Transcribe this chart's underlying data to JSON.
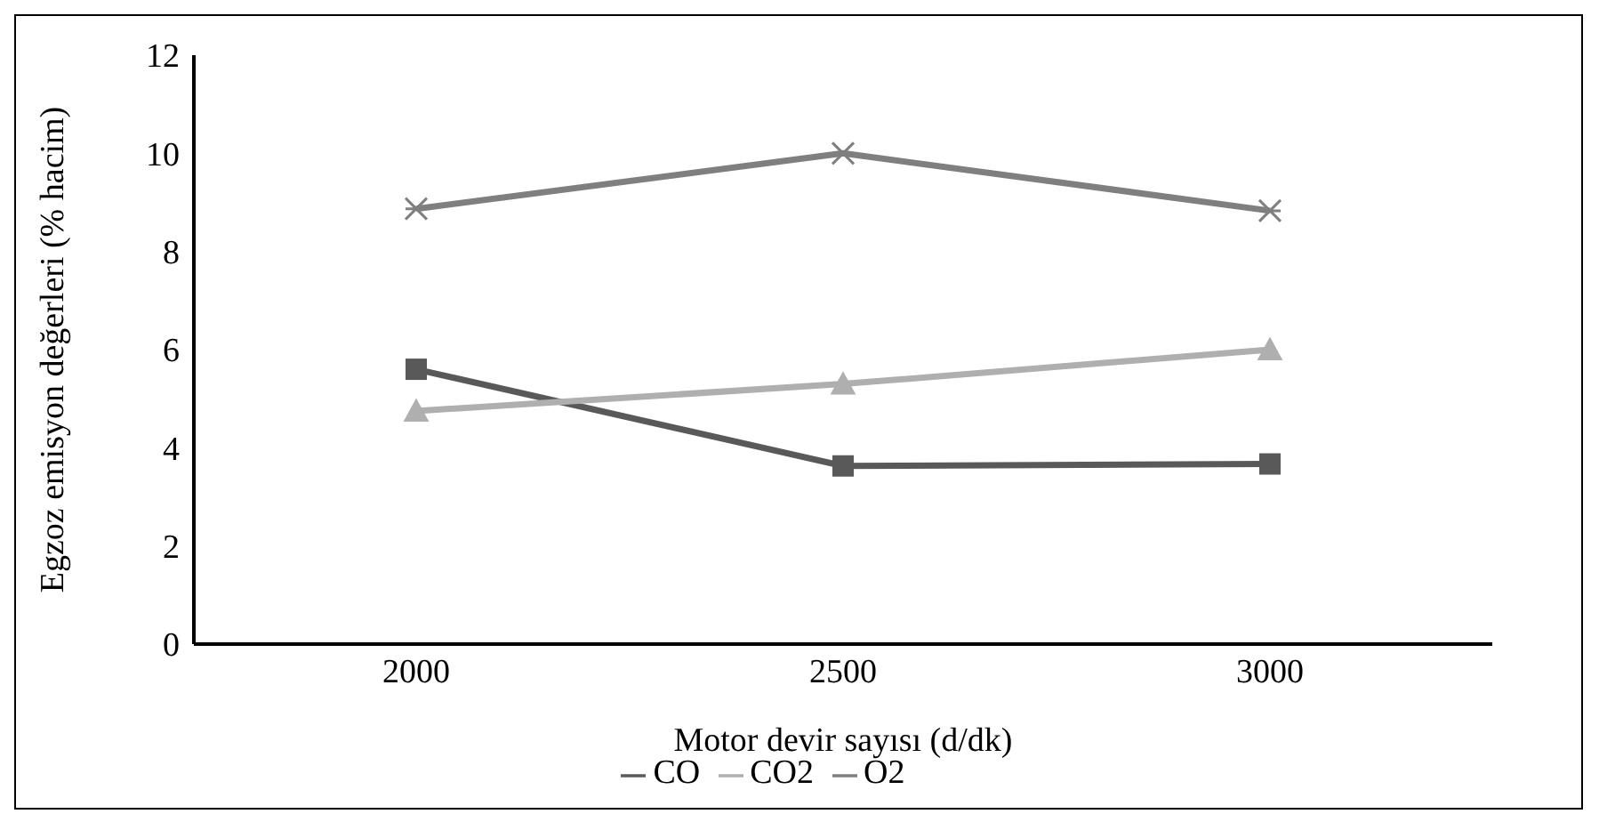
{
  "chart_data": {
    "type": "line",
    "categories": [
      "2000",
      "2500",
      "3000"
    ],
    "xlabel": "Motor devir sayısı (d/dk)",
    "ylabel": "Egzoz emisyon değerleri (% hacim)",
    "ylim": [
      0,
      12
    ],
    "yticks": [
      0,
      2,
      4,
      6,
      8,
      10,
      12
    ],
    "grid": false,
    "legend": "bottom",
    "series": [
      {
        "name": "CO",
        "color": "#595959",
        "marker": "square",
        "values": [
          5.6,
          3.63,
          3.67
        ]
      },
      {
        "name": "CO2",
        "color": "#afafaf",
        "marker": "triangle",
        "values": [
          4.75,
          5.3,
          6.0
        ]
      },
      {
        "name": "O2",
        "color": "#7f7f7f",
        "marker": "cross",
        "values": [
          8.87,
          10.0,
          8.83
        ]
      }
    ]
  }
}
